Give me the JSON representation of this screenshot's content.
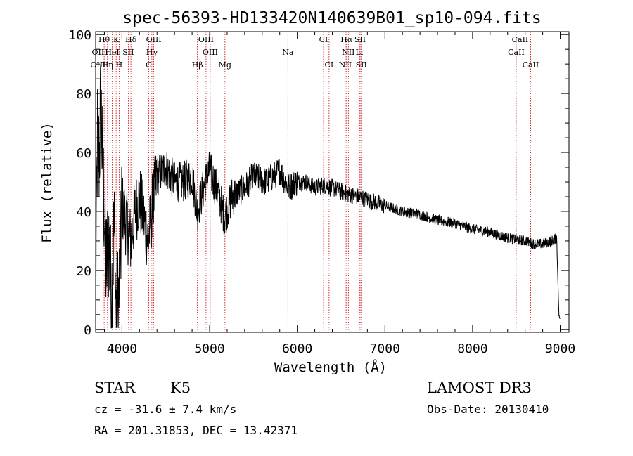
{
  "chart_data": {
    "type": "line",
    "title": "spec-56393-HD133420N140639B01_sp10-094.fits",
    "xlabel": "Wavelength (Å)",
    "ylabel": "Flux (relative)",
    "xlim": [
      3700,
      9100
    ],
    "ylim": [
      -1,
      101
    ],
    "xticks": [
      4000,
      5000,
      6000,
      7000,
      8000,
      9000
    ],
    "yticks": [
      0,
      20,
      40,
      60,
      80,
      100
    ],
    "spectrum_anchors": [
      {
        "x": 3700,
        "y": 8
      },
      {
        "x": 3720,
        "y": 65
      },
      {
        "x": 3740,
        "y": 58
      },
      {
        "x": 3760,
        "y": 78
      },
      {
        "x": 3780,
        "y": 55
      },
      {
        "x": 3800,
        "y": 40
      },
      {
        "x": 3820,
        "y": 20
      },
      {
        "x": 3850,
        "y": 30
      },
      {
        "x": 3880,
        "y": 10
      },
      {
        "x": 3910,
        "y": 35
      },
      {
        "x": 3935,
        "y": 5
      },
      {
        "x": 3968,
        "y": 12
      },
      {
        "x": 4000,
        "y": 42
      },
      {
        "x": 4050,
        "y": 36
      },
      {
        "x": 4100,
        "y": 30
      },
      {
        "x": 4150,
        "y": 40
      },
      {
        "x": 4200,
        "y": 45
      },
      {
        "x": 4300,
        "y": 30
      },
      {
        "x": 4350,
        "y": 42
      },
      {
        "x": 4400,
        "y": 52
      },
      {
        "x": 4500,
        "y": 55
      },
      {
        "x": 4600,
        "y": 50
      },
      {
        "x": 4700,
        "y": 50
      },
      {
        "x": 4800,
        "y": 52
      },
      {
        "x": 4860,
        "y": 40
      },
      {
        "x": 4950,
        "y": 50
      },
      {
        "x": 5000,
        "y": 54
      },
      {
        "x": 5100,
        "y": 46
      },
      {
        "x": 5170,
        "y": 38
      },
      {
        "x": 5250,
        "y": 45
      },
      {
        "x": 5400,
        "y": 48
      },
      {
        "x": 5500,
        "y": 52
      },
      {
        "x": 5650,
        "y": 50
      },
      {
        "x": 5800,
        "y": 54
      },
      {
        "x": 5895,
        "y": 48
      },
      {
        "x": 6000,
        "y": 50
      },
      {
        "x": 6100,
        "y": 50
      },
      {
        "x": 6200,
        "y": 48
      },
      {
        "x": 6300,
        "y": 49
      },
      {
        "x": 6400,
        "y": 48
      },
      {
        "x": 6563,
        "y": 46
      },
      {
        "x": 6700,
        "y": 45
      },
      {
        "x": 6800,
        "y": 44
      },
      {
        "x": 6900,
        "y": 43
      },
      {
        "x": 7000,
        "y": 42
      },
      {
        "x": 7200,
        "y": 40
      },
      {
        "x": 7400,
        "y": 39
      },
      {
        "x": 7600,
        "y": 37
      },
      {
        "x": 7800,
        "y": 36
      },
      {
        "x": 8000,
        "y": 34
      },
      {
        "x": 8200,
        "y": 33
      },
      {
        "x": 8400,
        "y": 31
      },
      {
        "x": 8600,
        "y": 30
      },
      {
        "x": 8700,
        "y": 29
      },
      {
        "x": 8800,
        "y": 29
      },
      {
        "x": 8900,
        "y": 30
      },
      {
        "x": 8960,
        "y": 31
      },
      {
        "x": 8985,
        "y": 5
      },
      {
        "x": 9000,
        "y": 3
      }
    ],
    "spectral_lines": [
      {
        "label": "Hθ",
        "wavelength": 3797,
        "row": 1
      },
      {
        "label": "K",
        "wavelength": 3934,
        "row": 1
      },
      {
        "label": "Hδ",
        "wavelength": 4102,
        "row": 1
      },
      {
        "label": "OIII",
        "wavelength": 4363,
        "row": 1
      },
      {
        "label": "OIII",
        "wavelength": 4959,
        "row": 1
      },
      {
        "label": "CI",
        "wavelength": 6300,
        "row": 1
      },
      {
        "label": "Hα",
        "wavelength": 6563,
        "row": 1
      },
      {
        "label": "SII",
        "wavelength": 6717,
        "row": 1
      },
      {
        "label": "CaII",
        "wavelength": 8542,
        "row": 1
      },
      {
        "label": "OII",
        "wavelength": 3727,
        "row": 2
      },
      {
        "label": "HeI",
        "wavelength": 3889,
        "row": 2
      },
      {
        "label": "SII",
        "wavelength": 4072,
        "row": 2
      },
      {
        "label": "Hγ",
        "wavelength": 4341,
        "row": 2
      },
      {
        "label": "OIII",
        "wavelength": 5007,
        "row": 2
      },
      {
        "label": "Na",
        "wavelength": 5893,
        "row": 2
      },
      {
        "label": "NII",
        "wavelength": 6583,
        "row": 2
      },
      {
        "label": "Li",
        "wavelength": 6708,
        "row": 2
      },
      {
        "label": "CaII",
        "wavelength": 8498,
        "row": 2
      },
      {
        "label": "OIII",
        "wavelength": 3727,
        "row": 3
      },
      {
        "label": "Hη",
        "wavelength": 3835,
        "row": 3
      },
      {
        "label": "H",
        "wavelength": 3968,
        "row": 3
      },
      {
        "label": "G",
        "wavelength": 4305,
        "row": 3
      },
      {
        "label": "Hβ",
        "wavelength": 4861,
        "row": 3
      },
      {
        "label": "Mg",
        "wavelength": 5175,
        "row": 3
      },
      {
        "label": "CI",
        "wavelength": 6363,
        "row": 3
      },
      {
        "label": "NII",
        "wavelength": 6548,
        "row": 3
      },
      {
        "label": "SII",
        "wavelength": 6731,
        "row": 3
      },
      {
        "label": "CaII",
        "wavelength": 8662,
        "row": 3
      }
    ]
  },
  "info": {
    "object_class": "STAR",
    "subclass": "K5",
    "survey": "LAMOST DR3",
    "redshift": "cz = -31.6 ± 7.4 km/s",
    "obs_date": "Obs-Date: 20130410",
    "coords": "RA = 201.31853, DEC =  13.42371"
  },
  "colors": {
    "spectrum": "#000000",
    "line_markers": "#cc0000"
  }
}
